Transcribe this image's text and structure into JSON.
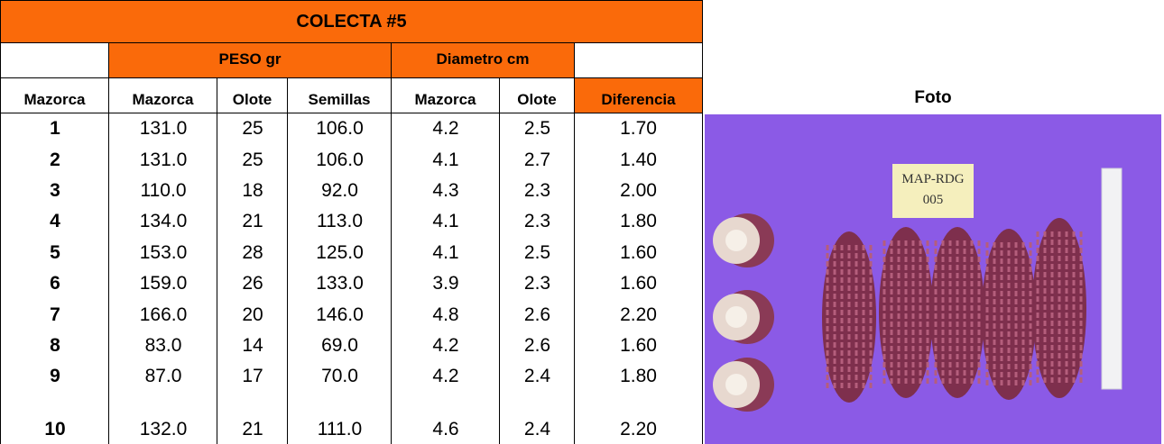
{
  "title": "COLECTA #5",
  "group_headers": [
    "PESO gr",
    "Diametro cm"
  ],
  "columns": [
    "Mazorca",
    "Mazorca",
    "Olote",
    "Semillas",
    "Mazorca",
    "Olote",
    "Diferencia"
  ],
  "photo_header": "Foto",
  "photo_label": [
    "MAP-RDG",
    "005"
  ],
  "rows": [
    [
      "1",
      "131.0",
      "25",
      "106.0",
      "4.2",
      "2.5",
      "1.70"
    ],
    [
      "2",
      "131.0",
      "25",
      "106.0",
      "4.1",
      "2.7",
      "1.40"
    ],
    [
      "3",
      "110.0",
      "18",
      "92.0",
      "4.3",
      "2.3",
      "2.00"
    ],
    [
      "4",
      "134.0",
      "21",
      "113.0",
      "4.1",
      "2.3",
      "1.80"
    ],
    [
      "5",
      "153.0",
      "28",
      "125.0",
      "4.1",
      "2.5",
      "1.60"
    ],
    [
      "6",
      "159.0",
      "26",
      "133.0",
      "3.9",
      "2.3",
      "1.60"
    ],
    [
      "7",
      "166.0",
      "20",
      "146.0",
      "4.8",
      "2.6",
      "2.20"
    ],
    [
      "8",
      "83.0",
      "14",
      "69.0",
      "4.2",
      "2.6",
      "1.60"
    ],
    [
      "9",
      "87.0",
      "17",
      "70.0",
      "4.2",
      "2.4",
      "1.80"
    ],
    [
      "10",
      "132.0",
      "21",
      "111.0",
      "4.6",
      "2.4",
      "2.20"
    ]
  ]
}
